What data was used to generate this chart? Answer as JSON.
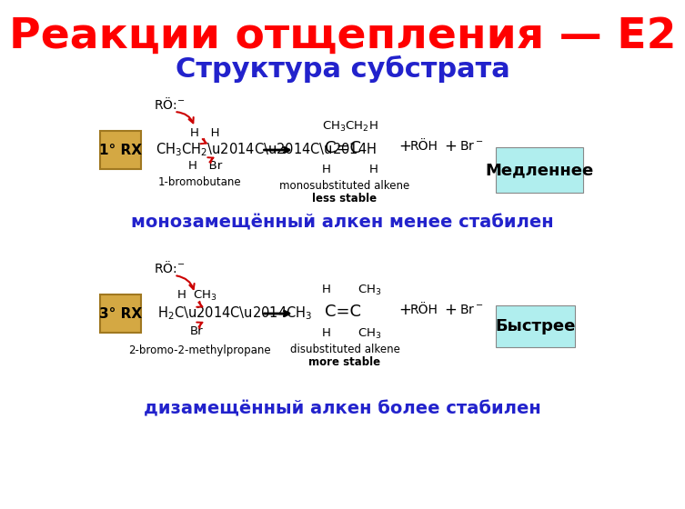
{
  "title": "Реакции отщепления — Е2",
  "subtitle": "Структура субстрата",
  "title_color": "#FF0000",
  "subtitle_color": "#2222CC",
  "bg_color": "#FFFFFF",
  "label1_text": "монозамещённый алкен менее стабилен",
  "label2_text": "дизамещённый алкен более стабилен",
  "label_color": "#2222CC",
  "slow_text": "Медленнее",
  "fast_text": "Быстрее",
  "slow_bg": "#B0EEEE",
  "fast_bg": "#B0EEEE",
  "box1_text": "1° RX",
  "box2_text": "3° RX",
  "box_bg": "#D4A843",
  "box_edge": "#A07820"
}
